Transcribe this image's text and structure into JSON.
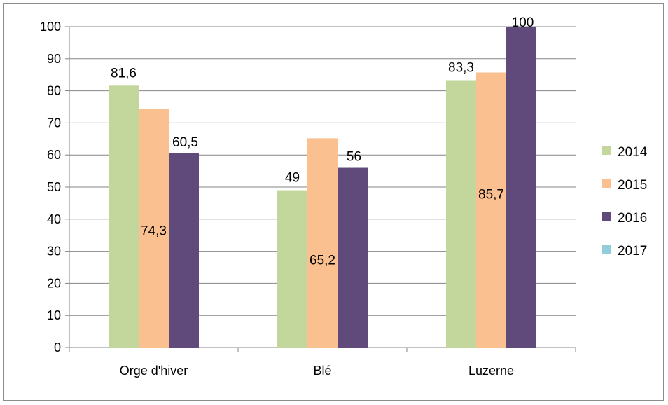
{
  "chart_data": {
    "type": "bar",
    "categories": [
      "Orge d'hiver",
      "Blé",
      "Luzerne"
    ],
    "series": [
      {
        "name": "2014",
        "values": [
          81.6,
          49,
          83.3
        ],
        "labels": [
          "81,6",
          "49",
          "83,3"
        ],
        "color": "#c3d69b"
      },
      {
        "name": "2015",
        "values": [
          74.3,
          65.2,
          85.7
        ],
        "labels": [
          "74,3",
          "65,2",
          "85,7"
        ],
        "color": "#fac090"
      },
      {
        "name": "2016",
        "values": [
          60.5,
          56,
          100
        ],
        "labels": [
          "60,5",
          "56",
          "100"
        ],
        "color": "#604a7b"
      },
      {
        "name": "2017",
        "values": [
          null,
          null,
          null
        ],
        "labels": [
          "",
          "",
          ""
        ],
        "color": "#92cddc"
      }
    ],
    "ylim": [
      0,
      100
    ],
    "yticks": [
      "0",
      "10",
      "20",
      "30",
      "40",
      "50",
      "60",
      "70",
      "80",
      "90",
      "100"
    ],
    "grid": true,
    "legend_position": "right"
  }
}
